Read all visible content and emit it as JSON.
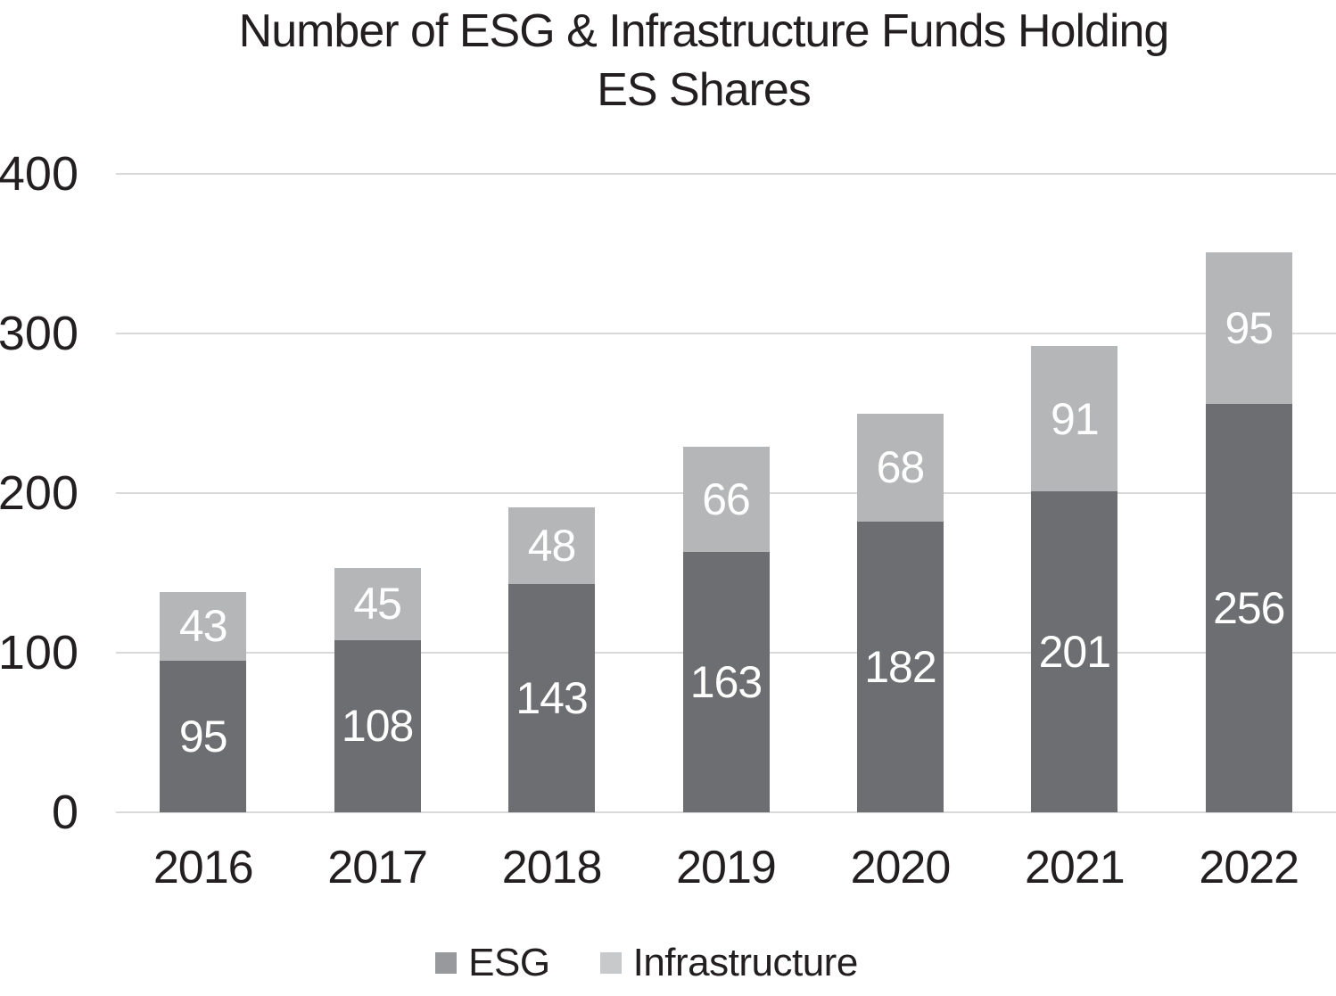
{
  "chart": {
    "title_line1": "Number of ESG & Infrastructure Funds Holding",
    "title_line2": "ES Shares"
  },
  "chart_data": {
    "type": "bar",
    "stacked": true,
    "title": "Number of ESG & Infrastructure Funds Holding ES Shares",
    "categories": [
      "2016",
      "2017",
      "2018",
      "2019",
      "2020",
      "2021",
      "2022"
    ],
    "series": [
      {
        "name": "ESG",
        "color": "#6d6e71",
        "legend_swatch_color": "#97999c",
        "label_color": "#ffffff",
        "values": [
          95,
          108,
          143,
          163,
          182,
          201,
          256
        ]
      },
      {
        "name": "Infrastructure",
        "color": "#b4b6b8",
        "legend_swatch_color": "#c8c9cb",
        "label_color": "#ffffff",
        "values": [
          43,
          45,
          48,
          66,
          68,
          91,
          95
        ]
      }
    ],
    "totals": [
      138,
      153,
      191,
      229,
      250,
      292,
      351
    ],
    "xlabel": "",
    "ylabel": "",
    "ylim": [
      0,
      400
    ],
    "yticks": [
      0,
      100,
      200,
      300,
      400
    ],
    "grid": "horizontal",
    "legend_position": "bottom",
    "data_labels": true
  },
  "colors": {
    "text": "#231f20",
    "gridline": "#d9d9d9",
    "background": "#ffffff"
  }
}
